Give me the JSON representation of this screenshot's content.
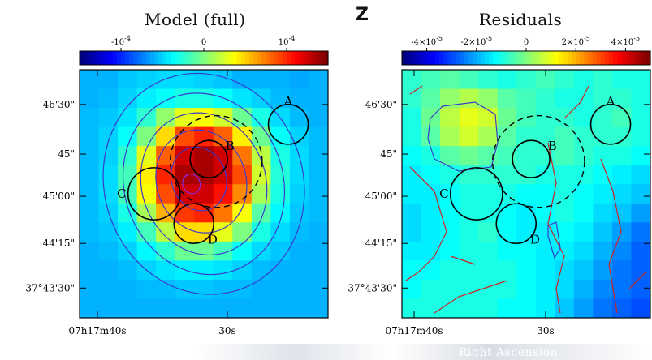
{
  "shared_label": "Z",
  "bottom_xlabel": "Right Ascension",
  "chart_data": [
    {
      "type": "heatmap",
      "title": "Model (full)",
      "colorbar": {
        "tick_labels": [
          "-10^-4",
          "0",
          "10^-4"
        ],
        "tick_values": [
          -0.0001,
          0,
          0.0001
        ],
        "range": [
          -0.00015,
          0.00015
        ]
      },
      "x_tick_labels": [
        "07h17m40s",
        "30s"
      ],
      "y_tick_labels": [
        "46'30\"",
        "45\"",
        "45'00\"",
        "44'15\"",
        "37°43'30\""
      ],
      "color_scale": [
        "#00007f",
        "#0000ff",
        "#007fff",
        "#00ffff",
        "#7fff7f",
        "#ffff00",
        "#ff7f00",
        "#ff0000",
        "#7f0000"
      ],
      "grid_values": [
        [
          0.3,
          0.3,
          0.32,
          0.33,
          0.34,
          0.34,
          0.33,
          0.32,
          0.3,
          0.3,
          0.3,
          0.29,
          0.3
        ],
        [
          0.3,
          0.31,
          0.33,
          0.36,
          0.38,
          0.4,
          0.4,
          0.38,
          0.35,
          0.33,
          0.31,
          0.3,
          0.3
        ],
        [
          0.31,
          0.32,
          0.35,
          0.42,
          0.52,
          0.6,
          0.62,
          0.58,
          0.48,
          0.4,
          0.34,
          0.31,
          0.3
        ],
        [
          0.31,
          0.33,
          0.38,
          0.5,
          0.66,
          0.8,
          0.84,
          0.78,
          0.64,
          0.48,
          0.38,
          0.33,
          0.31
        ],
        [
          0.31,
          0.33,
          0.42,
          0.6,
          0.78,
          0.92,
          0.96,
          0.92,
          0.76,
          0.56,
          0.4,
          0.34,
          0.31
        ],
        [
          0.31,
          0.34,
          0.44,
          0.64,
          0.84,
          0.96,
          0.96,
          0.92,
          0.8,
          0.58,
          0.41,
          0.34,
          0.31
        ],
        [
          0.31,
          0.34,
          0.44,
          0.62,
          0.8,
          0.92,
          0.92,
          0.86,
          0.74,
          0.54,
          0.4,
          0.33,
          0.31
        ],
        [
          0.31,
          0.33,
          0.4,
          0.54,
          0.7,
          0.82,
          0.84,
          0.76,
          0.62,
          0.46,
          0.37,
          0.32,
          0.31
        ],
        [
          0.31,
          0.32,
          0.36,
          0.44,
          0.56,
          0.66,
          0.66,
          0.6,
          0.5,
          0.4,
          0.34,
          0.31,
          0.3
        ],
        [
          0.3,
          0.31,
          0.33,
          0.37,
          0.42,
          0.48,
          0.48,
          0.44,
          0.38,
          0.34,
          0.32,
          0.3,
          0.3
        ],
        [
          0.3,
          0.3,
          0.31,
          0.33,
          0.35,
          0.36,
          0.36,
          0.35,
          0.33,
          0.31,
          0.3,
          0.3,
          0.3
        ],
        [
          0.3,
          0.3,
          0.3,
          0.31,
          0.31,
          0.32,
          0.32,
          0.31,
          0.31,
          0.3,
          0.3,
          0.3,
          0.3
        ],
        [
          0.3,
          0.3,
          0.3,
          0.3,
          0.3,
          0.3,
          0.3,
          0.3,
          0.3,
          0.3,
          0.3,
          0.3,
          0.3
        ]
      ],
      "circles": [
        {
          "label": "A",
          "cx": 0.84,
          "cy": 0.22,
          "r": 0.08
        },
        {
          "label": "B",
          "cx": 0.52,
          "cy": 0.36,
          "r": 0.075
        },
        {
          "label": "C",
          "cx": 0.3,
          "cy": 0.5,
          "r": 0.105
        },
        {
          "label": "D",
          "cx": 0.46,
          "cy": 0.62,
          "r": 0.08
        }
      ],
      "dashed_circle": {
        "cx": 0.55,
        "cy": 0.37,
        "r": 0.185
      },
      "contours": [
        {
          "cx": 0.5,
          "cy": 0.46,
          "rx": 0.4,
          "ry": 0.45,
          "color": "#3a3acc"
        },
        {
          "cx": 0.5,
          "cy": 0.46,
          "rx": 0.32,
          "ry": 0.37,
          "color": "#3a3acc"
        },
        {
          "cx": 0.5,
          "cy": 0.46,
          "rx": 0.25,
          "ry": 0.29,
          "color": "#3a3acc"
        },
        {
          "cx": 0.49,
          "cy": 0.45,
          "rx": 0.18,
          "ry": 0.21,
          "color": "#3a3acc"
        },
        {
          "cx": 0.48,
          "cy": 0.44,
          "rx": 0.11,
          "ry": 0.13,
          "color": "#3a3acc"
        },
        {
          "cx": 0.45,
          "cy": 0.46,
          "rx": 0.035,
          "ry": 0.04,
          "color": "#8a2be2"
        }
      ]
    },
    {
      "type": "heatmap",
      "title": "Residuals",
      "colorbar": {
        "tick_labels": [
          "-4×10^-5",
          "-2×10^-5",
          "0",
          "2×10^-5",
          "4×10^-5"
        ],
        "tick_values": [
          -4e-05,
          -2e-05,
          0,
          2e-05,
          4e-05
        ],
        "range": [
          -5e-05,
          5e-05
        ]
      },
      "x_tick_labels": [
        "07h17m40s",
        "30s"
      ],
      "y_tick_labels": [
        "46'30\"",
        "45\"",
        "45'00\"",
        "44'15\"",
        "37°43'30\""
      ],
      "color_scale": [
        "#00007f",
        "#0000ff",
        "#007fff",
        "#00ffff",
        "#7fff7f",
        "#ffff00",
        "#ff7f00",
        "#ff0000",
        "#7f0000"
      ],
      "grid_values": [
        [
          0.42,
          0.44,
          0.46,
          0.44,
          0.42,
          0.4,
          0.42,
          0.44,
          0.42,
          0.4,
          0.42,
          0.4,
          0.4
        ],
        [
          0.42,
          0.46,
          0.52,
          0.55,
          0.52,
          0.46,
          0.44,
          0.42,
          0.4,
          0.4,
          0.42,
          0.42,
          0.4
        ],
        [
          0.4,
          0.48,
          0.56,
          0.6,
          0.58,
          0.48,
          0.44,
          0.42,
          0.42,
          0.4,
          0.42,
          0.44,
          0.4
        ],
        [
          0.4,
          0.46,
          0.54,
          0.58,
          0.54,
          0.46,
          0.42,
          0.42,
          0.44,
          0.42,
          0.42,
          0.42,
          0.4
        ],
        [
          0.38,
          0.4,
          0.46,
          0.48,
          0.46,
          0.44,
          0.42,
          0.42,
          0.44,
          0.42,
          0.4,
          0.4,
          0.38
        ],
        [
          0.36,
          0.38,
          0.4,
          0.42,
          0.42,
          0.42,
          0.42,
          0.4,
          0.4,
          0.4,
          0.38,
          0.36,
          0.34
        ],
        [
          0.36,
          0.36,
          0.38,
          0.4,
          0.4,
          0.4,
          0.38,
          0.38,
          0.4,
          0.38,
          0.36,
          0.34,
          0.32
        ],
        [
          0.34,
          0.36,
          0.38,
          0.4,
          0.4,
          0.38,
          0.36,
          0.38,
          0.4,
          0.38,
          0.34,
          0.32,
          0.28
        ],
        [
          0.34,
          0.36,
          0.38,
          0.4,
          0.42,
          0.38,
          0.36,
          0.36,
          0.38,
          0.36,
          0.32,
          0.28,
          0.24
        ],
        [
          0.36,
          0.36,
          0.38,
          0.4,
          0.4,
          0.38,
          0.38,
          0.36,
          0.36,
          0.34,
          0.3,
          0.26,
          0.22
        ],
        [
          0.38,
          0.38,
          0.4,
          0.4,
          0.4,
          0.4,
          0.38,
          0.36,
          0.34,
          0.32,
          0.28,
          0.24,
          0.22
        ],
        [
          0.38,
          0.4,
          0.4,
          0.4,
          0.4,
          0.4,
          0.38,
          0.36,
          0.34,
          0.3,
          0.26,
          0.24,
          0.22
        ],
        [
          0.4,
          0.4,
          0.4,
          0.4,
          0.4,
          0.38,
          0.38,
          0.36,
          0.32,
          0.28,
          0.24,
          0.22,
          0.2
        ]
      ],
      "circles": [
        {
          "label": "A",
          "cx": 0.84,
          "cy": 0.22,
          "r": 0.08
        },
        {
          "label": "B",
          "cx": 0.52,
          "cy": 0.36,
          "r": 0.075
        },
        {
          "label": "C",
          "cx": 0.3,
          "cy": 0.5,
          "r": 0.105
        },
        {
          "label": "D",
          "cx": 0.46,
          "cy": 0.62,
          "r": 0.08
        }
      ],
      "dashed_circle": {
        "cx": 0.55,
        "cy": 0.37,
        "r": 0.185
      },
      "contours": []
    }
  ]
}
